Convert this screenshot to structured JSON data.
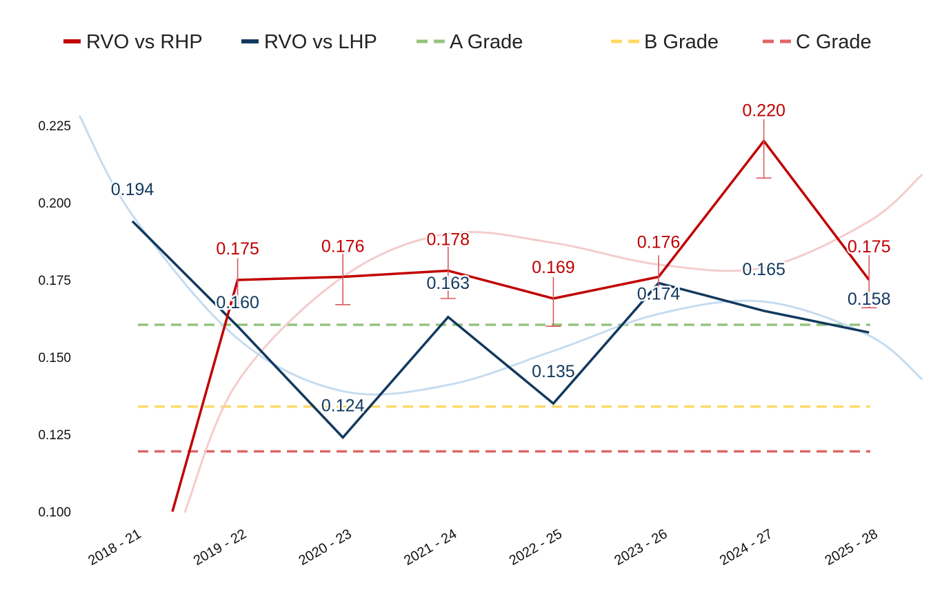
{
  "chart_data": {
    "type": "line",
    "title": "",
    "xlabel": "",
    "ylabel": "",
    "categories": [
      "2018 - 21",
      "2019 - 22",
      "2020 - 23",
      "2021 - 24",
      "2022 - 25",
      "2023 - 26",
      "2024 - 27",
      "2025 - 28"
    ],
    "ylim": [
      0.1,
      0.225
    ],
    "yticks": [
      0.1,
      0.125,
      0.15,
      0.175,
      0.2,
      0.225
    ],
    "ytick_labels": [
      "0.100",
      "0.125",
      "0.150",
      "0.175",
      "0.200",
      "0.225"
    ],
    "grid": false,
    "legend_position": "top",
    "series": [
      {
        "name": "RVO vs RHP",
        "color": "#c00000",
        "values": [
          null,
          0.175,
          0.176,
          0.178,
          0.169,
          0.176,
          0.22,
          0.175
        ],
        "labels": [
          "",
          "0.175",
          "0.176",
          "0.178",
          "0.169",
          "0.176",
          "0.220",
          "0.175"
        ],
        "error_low": [
          null,
          0.166,
          0.167,
          0.169,
          0.16,
          0.169,
          0.208,
          0.166
        ],
        "error_high": [
          null,
          0.182,
          0.184,
          0.186,
          0.176,
          0.183,
          0.227,
          0.183
        ],
        "trend_color": "#f4cccc",
        "trend_points": [
          [
            0.5,
            0.1
          ],
          [
            1,
            0.142
          ],
          [
            2,
            0.176
          ],
          [
            3,
            0.19
          ],
          [
            4,
            0.187
          ],
          [
            5,
            0.18
          ],
          [
            6,
            0.179
          ],
          [
            7,
            0.194
          ],
          [
            7.5,
            0.209
          ]
        ]
      },
      {
        "name": "RVO vs LHP",
        "color": "#12395e",
        "values": [
          0.194,
          0.16,
          0.124,
          0.163,
          0.135,
          0.174,
          0.165,
          0.158
        ],
        "labels": [
          "0.194",
          "0.160",
          "0.124",
          "0.163",
          "0.135",
          "0.174",
          "0.165",
          "0.158"
        ],
        "trend_color": "#c5dcf0",
        "trend_points": [
          [
            -0.5,
            0.228
          ],
          [
            0,
            0.196
          ],
          [
            1,
            0.156
          ],
          [
            2,
            0.139
          ],
          [
            3,
            0.141
          ],
          [
            4,
            0.152
          ],
          [
            5,
            0.164
          ],
          [
            6,
            0.168
          ],
          [
            7,
            0.157
          ],
          [
            7.5,
            0.143
          ]
        ]
      }
    ],
    "reference_lines": [
      {
        "name": "A Grade",
        "value": 0.1605,
        "color": "#93c47d"
      },
      {
        "name": "B Grade",
        "value": 0.134,
        "color": "#ffd966"
      },
      {
        "name": "C Grade",
        "value": 0.1195,
        "color": "#e06666"
      }
    ],
    "legend": [
      {
        "label": "RVO vs RHP",
        "color": "#c00000",
        "style": "solid"
      },
      {
        "label": "RVO vs LHP",
        "color": "#12395e",
        "style": "solid"
      },
      {
        "label": "A Grade",
        "color": "#93c47d",
        "style": "dashed"
      },
      {
        "label": "B Grade",
        "color": "#ffd966",
        "style": "dashed"
      },
      {
        "label": "C Grade",
        "color": "#e06666",
        "style": "dashed"
      }
    ]
  }
}
